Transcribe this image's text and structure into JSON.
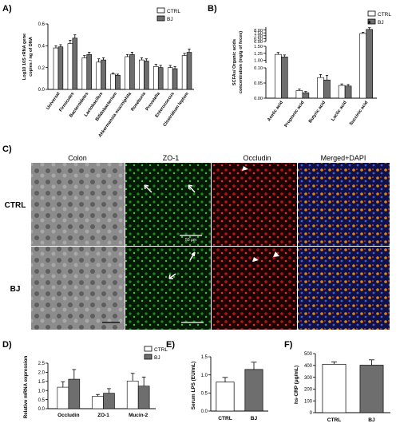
{
  "panel_labels": {
    "A": "A)",
    "B": "B)",
    "C": "C)",
    "D": "D)",
    "E": "E)",
    "F": "F)"
  },
  "legend": {
    "ctrl": "CTRL",
    "bj": "BJ"
  },
  "colors": {
    "ctrl": "#ffffff",
    "bj": "#6e6e6e",
    "bg": "#ffffff",
    "axis": "#000000"
  },
  "micro": {
    "col_headers": [
      "Colon",
      "ZO-1",
      "Occludin",
      "Merged+DAPI"
    ],
    "row_labels": [
      "CTRL",
      "BJ"
    ],
    "scale_text": "50 μm"
  },
  "chart_data": [
    {
      "id": "A",
      "type": "bar",
      "ylabel": "Log10 16S rRNA gene copies / ng of DNA",
      "ylim": [
        0,
        0.6
      ],
      "yticks": [
        "0.0",
        "0.2",
        "0.4",
        "0.6"
      ],
      "categories": [
        "Universal",
        "Firmicutes",
        "Bacteroidetes",
        "Lactobacillus",
        "Bifidobacterium",
        "Akkermansia muciniphila",
        "Roseburia",
        "Prevotella",
        "Enterococcus",
        "Clostridium leptum"
      ],
      "series": [
        {
          "name": "CTRL",
          "values": [
            0.38,
            0.42,
            0.29,
            0.25,
            0.14,
            0.3,
            0.27,
            0.21,
            0.2,
            0.31
          ],
          "err": [
            0.02,
            0.03,
            0.02,
            0.03,
            0.01,
            0.02,
            0.02,
            0.02,
            0.02,
            0.02
          ]
        },
        {
          "name": "BJ",
          "values": [
            0.39,
            0.47,
            0.32,
            0.27,
            0.13,
            0.32,
            0.26,
            0.2,
            0.19,
            0.34
          ],
          "err": [
            0.02,
            0.03,
            0.02,
            0.02,
            0.01,
            0.02,
            0.02,
            0.02,
            0.02,
            0.03
          ]
        }
      ]
    },
    {
      "id": "B",
      "type": "bar",
      "ylabel": "SCFAs/ Organic acids concentration (mg/g of feces)",
      "broken_axis": true,
      "segments": [
        {
          "range": [
            6.0,
            8.5
          ],
          "ticks": [
            "6.00",
            "6.50",
            "7.00",
            "7.50",
            "8.00"
          ]
        },
        {
          "range": [
            0.9,
            1.5
          ],
          "ticks": [
            "1.00",
            "1.25",
            "1.50"
          ]
        },
        {
          "range": [
            0,
            0.1
          ],
          "ticks": [
            "0.00",
            "0.05",
            "0.10"
          ]
        }
      ],
      "categories": [
        "Acetic acid",
        "Propionic acid",
        "Butyric acid",
        "Lactic acid",
        "Succinic acid"
      ],
      "series": [
        {
          "name": "CTRL",
          "values": [
            1.21,
            0.025,
            0.068,
            0.042,
            7.4
          ],
          "err": [
            0.07,
            0.005,
            0.01,
            0.005,
            0.2
          ]
        },
        {
          "name": "BJ",
          "values": [
            1.12,
            0.018,
            0.06,
            0.04,
            8.1
          ],
          "err": [
            0.07,
            0.004,
            0.015,
            0.005,
            0.3
          ]
        }
      ],
      "annotations": [
        {
          "category": "Succinic acid",
          "text": "*"
        }
      ]
    },
    {
      "id": "D",
      "type": "bar",
      "ylabel": "Relative mRNA expression",
      "ylim": [
        0,
        2.5
      ],
      "yticks": [
        "0.0",
        "0.5",
        "1.0",
        "1.5",
        "2.0",
        "2.5"
      ],
      "categories": [
        "Occludin",
        "ZO-1",
        "Mucin-2"
      ],
      "series": [
        {
          "name": "CTRL",
          "values": [
            1.18,
            0.68,
            1.52
          ],
          "err": [
            0.3,
            0.1,
            0.42
          ]
        },
        {
          "name": "BJ",
          "values": [
            1.62,
            0.85,
            1.24
          ],
          "err": [
            0.53,
            0.25,
            0.5
          ]
        }
      ]
    },
    {
      "id": "E",
      "type": "bar",
      "ylabel": "Serum LPS (EU/mL)",
      "ylim": [
        0,
        1.5
      ],
      "yticks": [
        "0.0",
        "0.5",
        "1.0",
        "1.5"
      ],
      "categories": [
        "CTRL",
        "BJ"
      ],
      "series": [
        {
          "name": "",
          "values": [
            0.8,
            1.15
          ],
          "err": [
            0.13,
            0.2
          ]
        }
      ]
    },
    {
      "id": "F",
      "type": "bar",
      "ylabel": "hs-CRP (μg/mL)",
      "ylim": [
        0,
        500
      ],
      "yticks": [
        "0",
        "100",
        "200",
        "300",
        "400",
        "500"
      ],
      "categories": [
        "CTRL",
        "BJ"
      ],
      "series": [
        {
          "name": "",
          "values": [
            410,
            402
          ],
          "err": [
            20,
            45
          ]
        }
      ]
    }
  ]
}
